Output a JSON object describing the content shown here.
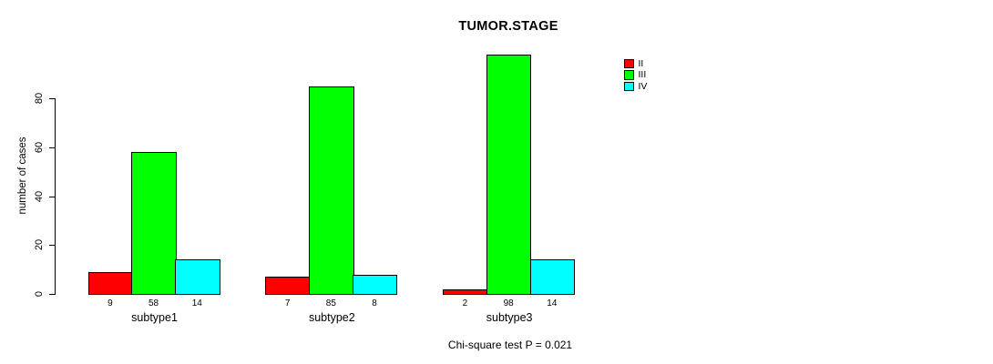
{
  "chart_data": {
    "type": "bar",
    "title": "TUMOR.STAGE",
    "ylabel": "number of cases",
    "xlabel": "",
    "footnote": "Chi-square test P = 0.021",
    "categories": [
      "subtype1",
      "subtype2",
      "subtype3"
    ],
    "series": [
      {
        "name": "II",
        "color": "#ff0000",
        "values": [
          9,
          7,
          2
        ]
      },
      {
        "name": "III",
        "color": "#00ff00",
        "values": [
          58,
          85,
          98
        ]
      },
      {
        "name": "IV",
        "color": "#00ffff",
        "values": [
          14,
          8,
          14
        ]
      }
    ],
    "yticks": [
      0,
      20,
      40,
      60,
      80
    ],
    "ylim": [
      0,
      100
    ],
    "grid": false,
    "bar_value_labels": true,
    "legend_position": "top-right",
    "colors": {
      "background": "#ffffff",
      "axis": "#000000",
      "text": "#000000"
    }
  }
}
